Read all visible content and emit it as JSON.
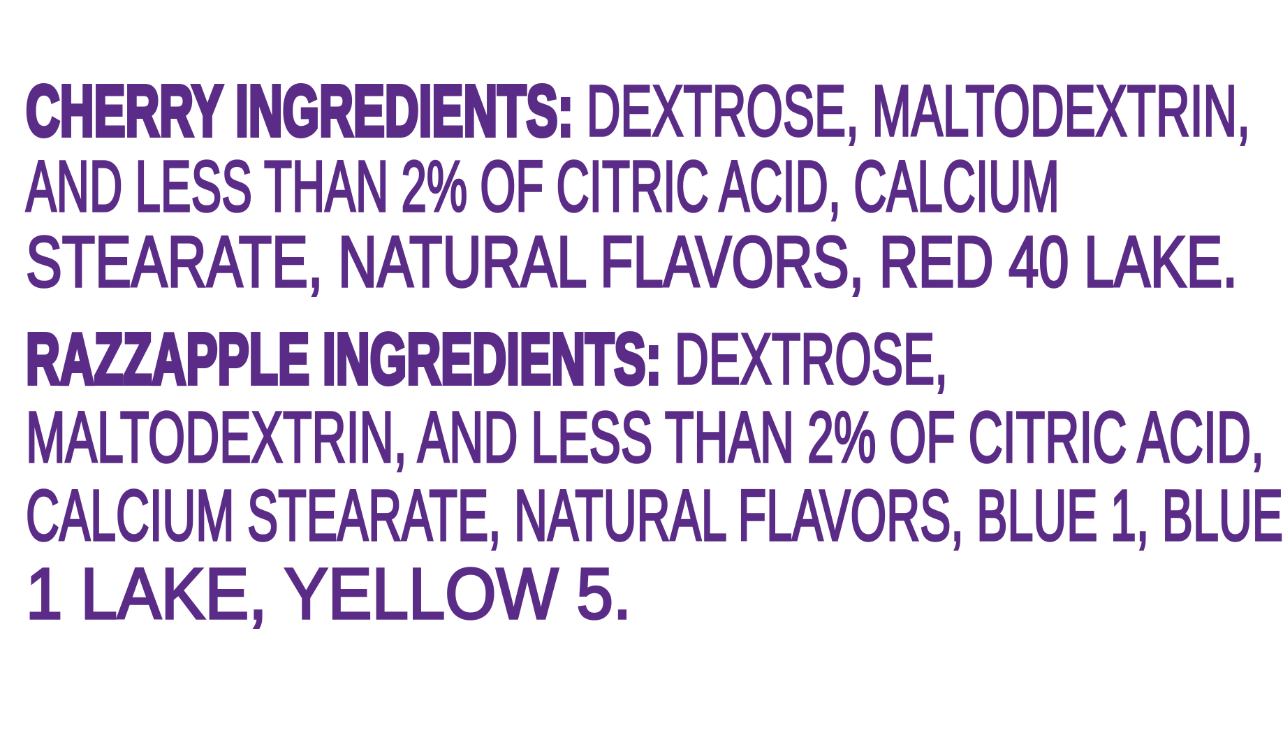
{
  "label": {
    "text_color": "#5B2C87",
    "background_color": "#FFFFFF",
    "sections": [
      {
        "id": "cherry",
        "heading": "CHERRY INGREDIENTS:",
        "lines": [
          {
            "bold": "CHERRY INGREDIENTS:",
            "regular": " DEXTROSE, MALTODEXTRIN,"
          },
          {
            "bold": "",
            "regular": "AND LESS THAN 2% OF CITRIC ACID, CALCIUM"
          },
          {
            "bold": "",
            "regular": "STEARATE, NATURAL FLAVORS, RED 40 LAKE."
          }
        ]
      },
      {
        "id": "razzapple",
        "heading": "RAZZAPPLE INGREDIENTS:",
        "lines": [
          {
            "bold": "RAZZAPPLE INGREDIENTS:",
            "regular": " DEXTROSE,"
          },
          {
            "bold": "",
            "regular": "MALTODEXTRIN, AND LESS THAN 2% OF CITRIC ACID,"
          },
          {
            "bold": "",
            "regular": "CALCIUM STEARATE, NATURAL FLAVORS, BLUE 1, BLUE"
          },
          {
            "bold": "",
            "regular": "1 LAKE, YELLOW 5."
          }
        ]
      }
    ]
  }
}
